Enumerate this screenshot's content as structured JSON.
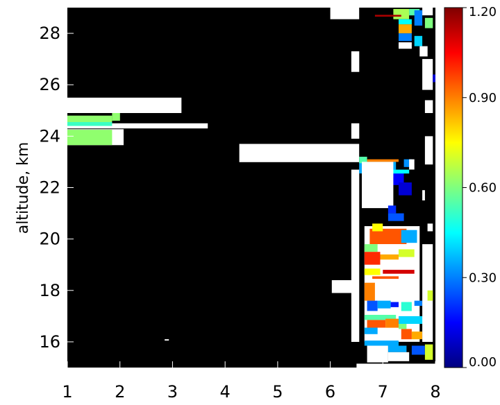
{
  "chart_data": {
    "type": "heatmap",
    "title": "",
    "xlabel": "",
    "ylabel": "altitude, km",
    "xlim": [
      1,
      8
    ],
    "ylim": [
      15,
      29
    ],
    "x_ticks": [
      "1",
      "2",
      "3",
      "4",
      "5",
      "6",
      "7",
      "8"
    ],
    "y_ticks": [
      "16",
      "18",
      "20",
      "22",
      "24",
      "26",
      "28"
    ],
    "background": "#000000",
    "no_data_color": "#ffffff",
    "colorbar": {
      "range": [
        0.0,
        1.2
      ],
      "colormap": "rainbow (dark blue to dark red)",
      "ticks": [
        "0.00",
        "0.30",
        "0.60",
        "0.90",
        "1.20"
      ]
    },
    "regions": [
      {
        "x": [
          6.0,
          6.55
        ],
        "y": [
          28.55,
          29.0
        ],
        "value": null
      },
      {
        "x": [
          6.4,
          6.55
        ],
        "y": [
          26.5,
          27.3
        ],
        "value": null
      },
      {
        "x": [
          6.4,
          6.55
        ],
        "y": [
          23.9,
          24.5
        ],
        "value": null
      },
      {
        "x": [
          6.4,
          6.55
        ],
        "y": [
          16.0,
          22.7
        ],
        "value": null
      },
      {
        "x": [
          4.27,
          6.55
        ],
        "y": [
          22.99,
          23.7
        ],
        "value": null
      },
      {
        "x": [
          6.03,
          6.52
        ],
        "y": [
          17.9,
          18.4
        ],
        "value": null
      },
      {
        "x": [
          1.0,
          3.17
        ],
        "y": [
          24.9,
          25.5
        ],
        "value": null
      },
      {
        "x": [
          1.0,
          3.67
        ],
        "y": [
          24.3,
          24.5
        ],
        "value": null
      },
      {
        "x": [
          1.0,
          2.07
        ],
        "y": [
          23.65,
          24.27
        ],
        "value": null
      },
      {
        "x": [
          1.0,
          1.85
        ],
        "y": [
          24.55,
          24.8
        ],
        "value": 0.62
      },
      {
        "x": [
          1.0,
          1.85
        ],
        "y": [
          24.4,
          24.55
        ],
        "value": 0.52
      },
      {
        "x": [
          1.0,
          1.85
        ],
        "y": [
          23.65,
          24.25
        ],
        "value": 0.62
      },
      {
        "x": [
          1.85,
          2.0
        ],
        "y": [
          24.6,
          24.9
        ],
        "value": 0.62
      },
      {
        "x": [
          2.85,
          2.93
        ],
        "y": [
          16.05,
          16.1
        ],
        "value": null
      },
      {
        "x": [
          6.55,
          7.25
        ],
        "y": [
          22.55,
          23.05
        ],
        "value": 0.35
      },
      {
        "x": [
          6.55,
          6.7
        ],
        "y": [
          22.95,
          23.2
        ],
        "value": 0.55
      },
      {
        "x": [
          6.85,
          7.2
        ],
        "y": [
          22.4,
          22.75
        ],
        "value": 0.25
      },
      {
        "x": [
          7.2,
          7.4
        ],
        "y": [
          22.1,
          22.7
        ],
        "value": 0.15
      },
      {
        "x": [
          7.4,
          7.55
        ],
        "y": [
          22.8,
          23.1
        ],
        "value": 0.32
      },
      {
        "x": [
          7.5,
          7.6
        ],
        "y": [
          22.7,
          23.1
        ],
        "value": null
      },
      {
        "x": [
          7.3,
          7.55
        ],
        "y": [
          21.7,
          22.2
        ],
        "value": 0.1
      },
      {
        "x": [
          6.7,
          7.5
        ],
        "y": [
          22.55,
          22.7
        ],
        "value": 0.45
      },
      {
        "x": [
          6.7,
          7.3
        ],
        "y": [
          23.0,
          23.1
        ],
        "value": 0.9
      },
      {
        "x": [
          6.6,
          7.2
        ],
        "y": [
          21.2,
          23.0
        ],
        "value": null
      },
      {
        "x": [
          6.65,
          7.7
        ],
        "y": [
          16.0,
          20.5
        ],
        "value": null
      },
      {
        "x": [
          6.75,
          7.45
        ],
        "y": [
          19.8,
          20.4
        ],
        "value": 0.95
      },
      {
        "x": [
          6.8,
          7.0
        ],
        "y": [
          20.3,
          20.6
        ],
        "value": 0.75
      },
      {
        "x": [
          6.65,
          6.9
        ],
        "y": [
          19.5,
          19.8
        ],
        "value": 0.6
      },
      {
        "x": [
          6.65,
          6.95
        ],
        "y": [
          19.0,
          19.5
        ],
        "value": 1.0
      },
      {
        "x": [
          6.95,
          7.3
        ],
        "y": [
          19.2,
          19.4
        ],
        "value": 0.85
      },
      {
        "x": [
          7.1,
          7.25
        ],
        "y": [
          21.0,
          21.3
        ],
        "value": 0.2
      },
      {
        "x": [
          7.1,
          7.4
        ],
        "y": [
          20.7,
          21.0
        ],
        "value": 0.25
      },
      {
        "x": [
          7.3,
          7.6
        ],
        "y": [
          19.3,
          19.6
        ],
        "value": 0.7
      },
      {
        "x": [
          7.35,
          7.65
        ],
        "y": [
          19.85,
          20.35
        ],
        "value": 0.35
      },
      {
        "x": [
          6.8,
          7.3
        ],
        "y": [
          18.45,
          18.55
        ],
        "value": 0.95
      },
      {
        "x": [
          6.65,
          6.95
        ],
        "y": [
          18.6,
          18.85
        ],
        "value": 0.75
      },
      {
        "x": [
          7.0,
          7.6
        ],
        "y": [
          18.65,
          18.8
        ],
        "value": 1.1
      },
      {
        "x": [
          6.65,
          6.85
        ],
        "y": [
          17.6,
          18.3
        ],
        "value": 0.9
      },
      {
        "x": [
          6.7,
          6.9
        ],
        "y": [
          17.2,
          17.6
        ],
        "value": 0.25
      },
      {
        "x": [
          6.9,
          7.15
        ],
        "y": [
          17.3,
          17.6
        ],
        "value": 0.35
      },
      {
        "x": [
          7.15,
          7.3
        ],
        "y": [
          17.35,
          17.55
        ],
        "value": 0.18
      },
      {
        "x": [
          7.35,
          7.55
        ],
        "y": [
          17.2,
          17.55
        ],
        "value": 0.5
      },
      {
        "x": [
          7.6,
          7.75
        ],
        "y": [
          17.4,
          17.6
        ],
        "value": 0.3
      },
      {
        "x": [
          6.65,
          7.25
        ],
        "y": [
          16.85,
          17.05
        ],
        "value": 0.55
      },
      {
        "x": [
          6.7,
          7.05
        ],
        "y": [
          16.55,
          16.85
        ],
        "value": 0.95
      },
      {
        "x": [
          7.05,
          7.3
        ],
        "y": [
          16.55,
          16.9
        ],
        "value": 0.9
      },
      {
        "x": [
          7.3,
          7.45
        ],
        "y": [
          16.5,
          16.8
        ],
        "value": 0.6
      },
      {
        "x": [
          6.65,
          6.9
        ],
        "y": [
          16.3,
          16.55
        ],
        "value": 0.35
      },
      {
        "x": [
          7.3,
          7.8
        ],
        "y": [
          16.7,
          17.0
        ],
        "value": 0.4
      },
      {
        "x": [
          7.35,
          7.55
        ],
        "y": [
          16.1,
          16.5
        ],
        "value": 0.95
      },
      {
        "x": [
          7.55,
          7.75
        ],
        "y": [
          16.1,
          16.4
        ],
        "value": 0.85
      },
      {
        "x": [
          6.65,
          7.3
        ],
        "y": [
          15.85,
          16.05
        ],
        "value": 0.35
      },
      {
        "x": [
          6.7,
          7.1
        ],
        "y": [
          15.2,
          15.85
        ],
        "value": null
      },
      {
        "x": [
          7.1,
          7.45
        ],
        "y": [
          15.6,
          15.85
        ],
        "value": 0.35
      },
      {
        "x": [
          7.1,
          7.5
        ],
        "y": [
          15.25,
          15.6
        ],
        "value": null
      },
      {
        "x": [
          7.55,
          7.8
        ],
        "y": [
          15.5,
          15.85
        ],
        "value": 0.25
      },
      {
        "x": [
          7.75,
          7.95
        ],
        "y": [
          16.0,
          19.8
        ],
        "value": null
      },
      {
        "x": [
          7.85,
          7.95
        ],
        "y": [
          17.6,
          18.0
        ],
        "value": 0.7
      },
      {
        "x": [
          7.8,
          7.95
        ],
        "y": [
          15.3,
          15.9
        ],
        "value": 0.7
      },
      {
        "x": [
          6.5,
          8.0
        ],
        "y": [
          15.0,
          15.15
        ],
        "value": null
      },
      {
        "x": [
          7.2,
          7.5
        ],
        "y": [
          28.55,
          28.95
        ],
        "value": 0.65
      },
      {
        "x": [
          7.5,
          7.7
        ],
        "y": [
          28.7,
          28.95
        ],
        "value": 0.55
      },
      {
        "x": [
          6.85,
          7.35
        ],
        "y": [
          28.65,
          28.72
        ],
        "value": 1.15
      },
      {
        "x": [
          7.3,
          7.55
        ],
        "y": [
          28.35,
          28.55
        ],
        "value": 0.45
      },
      {
        "x": [
          7.3,
          7.55
        ],
        "y": [
          28.0,
          28.35
        ],
        "value": 0.85
      },
      {
        "x": [
          7.3,
          7.55
        ],
        "y": [
          27.7,
          28.0
        ],
        "value": 0.3
      },
      {
        "x": [
          7.6,
          7.75
        ],
        "y": [
          28.3,
          28.9
        ],
        "value": 0.3
      },
      {
        "x": [
          7.75,
          7.95
        ],
        "y": [
          28.7,
          29.0
        ],
        "value": null
      },
      {
        "x": [
          7.8,
          7.95
        ],
        "y": [
          28.2,
          28.6
        ],
        "value": 0.6
      },
      {
        "x": [
          7.6,
          7.75
        ],
        "y": [
          27.5,
          27.9
        ],
        "value": 0.4
      },
      {
        "x": [
          7.3,
          7.55
        ],
        "y": [
          27.4,
          27.65
        ],
        "value": null
      },
      {
        "x": [
          7.7,
          7.85
        ],
        "y": [
          27.1,
          27.5
        ],
        "value": null
      },
      {
        "x": [
          7.75,
          7.95
        ],
        "y": [
          25.8,
          27.0
        ],
        "value": null
      },
      {
        "x": [
          7.95,
          8.0
        ],
        "y": [
          26.1,
          26.4
        ],
        "value": 0.1
      },
      {
        "x": [
          7.8,
          7.95
        ],
        "y": [
          24.9,
          25.4
        ],
        "value": null
      },
      {
        "x": [
          7.8,
          7.95
        ],
        "y": [
          22.9,
          24.0
        ],
        "value": null
      },
      {
        "x": [
          7.75,
          7.8
        ],
        "y": [
          21.5,
          21.9
        ],
        "value": null
      },
      {
        "x": [
          7.85,
          7.95
        ],
        "y": [
          20.3,
          20.6
        ],
        "value": null
      },
      {
        "x": [
          7.9,
          7.95
        ],
        "y": [
          18.4,
          18.8
        ],
        "value": null
      }
    ]
  }
}
